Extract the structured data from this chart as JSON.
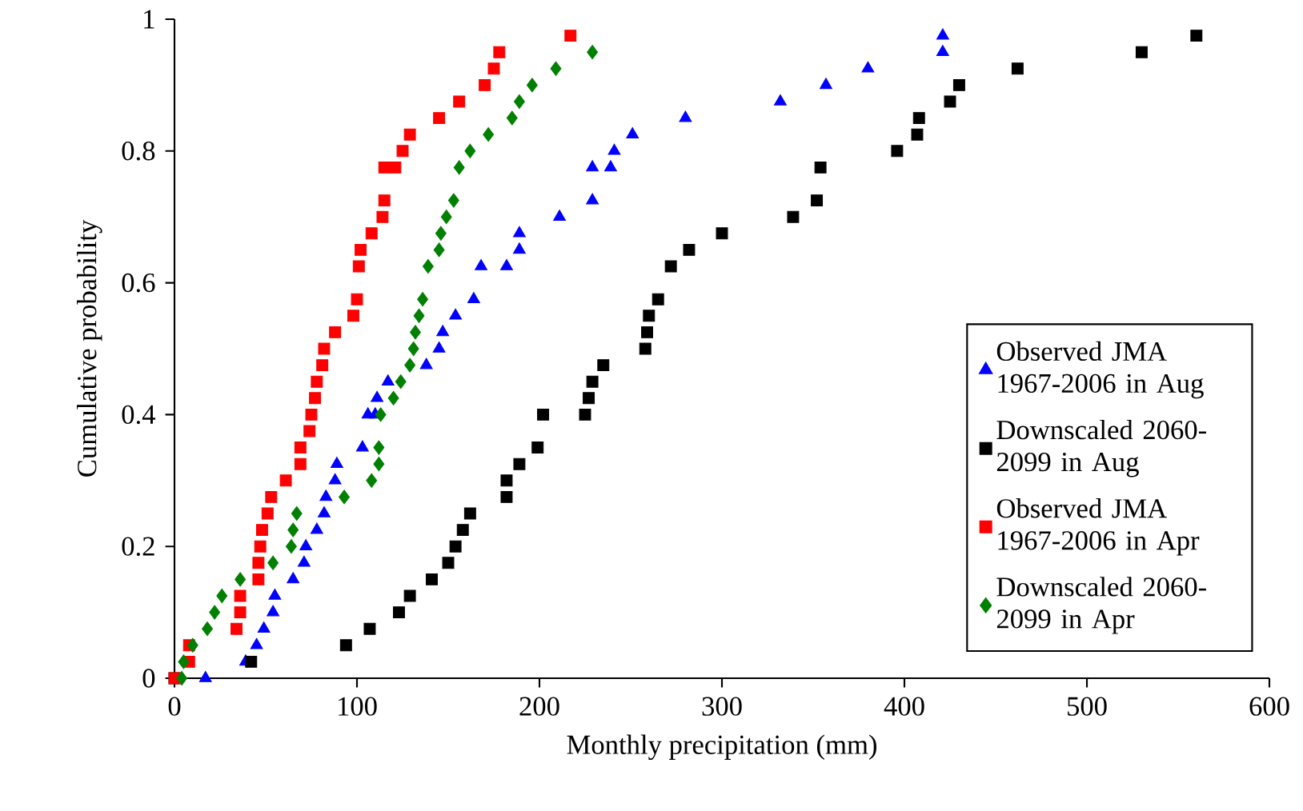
{
  "chart_data": {
    "type": "scatter",
    "xlabel": "Monthly precipitation (mm)",
    "ylabel": "Cumulative probability",
    "xlim": [
      0,
      600
    ],
    "ylim": [
      0,
      1
    ],
    "xticks": [
      0,
      100,
      200,
      300,
      400,
      500,
      600
    ],
    "yticks": [
      0,
      0.2,
      0.4,
      0.6,
      0.8,
      1
    ],
    "legend": "right",
    "series": [
      {
        "name": "Observed JMA 1967-2006 in Aug",
        "color": "#0000ff",
        "marker": "triangle",
        "x": [
          17,
          39,
          45,
          49,
          54,
          55,
          65,
          71,
          72,
          78,
          82,
          83,
          88,
          89,
          103,
          106,
          110,
          111,
          117,
          138,
          145,
          147,
          154,
          164,
          168,
          182,
          189,
          189,
          211,
          229,
          229,
          239,
          241,
          251,
          280,
          332,
          357,
          380,
          421,
          421
        ],
        "values": [
          0,
          0.025,
          0.05,
          0.075,
          0.1,
          0.125,
          0.15,
          0.175,
          0.2,
          0.225,
          0.25,
          0.275,
          0.3,
          0.325,
          0.35,
          0.4,
          0.4,
          0.425,
          0.45,
          0.475,
          0.5,
          0.525,
          0.55,
          0.575,
          0.625,
          0.625,
          0.65,
          0.675,
          0.7,
          0.725,
          0.775,
          0.775,
          0.8,
          0.825,
          0.85,
          0.875,
          0.9,
          0.925,
          0.95,
          0.975
        ]
      },
      {
        "name": "Downscaled 2060-2099 in Aug",
        "color": "#000000",
        "marker": "square",
        "x": [
          0,
          42,
          94,
          107,
          123,
          129,
          141,
          150,
          154,
          158,
          162,
          182,
          182,
          189,
          199,
          202,
          225,
          227,
          229,
          235,
          258,
          259,
          260,
          265,
          272,
          282,
          300,
          339,
          352,
          354,
          396,
          407,
          408,
          425,
          430,
          462,
          530,
          560
        ],
        "values": [
          0,
          0.025,
          0.05,
          0.075,
          0.1,
          0.125,
          0.15,
          0.175,
          0.2,
          0.225,
          0.25,
          0.275,
          0.3,
          0.325,
          0.35,
          0.4,
          0.4,
          0.425,
          0.45,
          0.475,
          0.5,
          0.525,
          0.55,
          0.575,
          0.625,
          0.65,
          0.675,
          0.7,
          0.725,
          0.775,
          0.8,
          0.825,
          0.85,
          0.875,
          0.9,
          0.925,
          0.95,
          0.975
        ]
      },
      {
        "name": "Observed JMA 1967-2006 in Apr",
        "color": "#ff0000",
        "marker": "square",
        "x": [
          0,
          8,
          8,
          34,
          36,
          36,
          46,
          46,
          47,
          48,
          51,
          53,
          61,
          69,
          69,
          74,
          75,
          77,
          78,
          81,
          82,
          88,
          98,
          100,
          101,
          102,
          108,
          114,
          115,
          115,
          121,
          125,
          129,
          145,
          156,
          170,
          175,
          178,
          217
        ],
        "values": [
          0,
          0.025,
          0.05,
          0.075,
          0.1,
          0.125,
          0.15,
          0.175,
          0.2,
          0.225,
          0.25,
          0.275,
          0.3,
          0.325,
          0.35,
          0.375,
          0.4,
          0.425,
          0.45,
          0.475,
          0.5,
          0.525,
          0.55,
          0.575,
          0.625,
          0.65,
          0.675,
          0.7,
          0.725,
          0.775,
          0.775,
          0.8,
          0.825,
          0.85,
          0.875,
          0.9,
          0.925,
          0.95,
          0.975
        ]
      },
      {
        "name": "Downscaled 2060-2099 in Apr",
        "color": "#008000",
        "marker": "diamond",
        "x": [
          4,
          5,
          10,
          18,
          22,
          26,
          36,
          54,
          64,
          65,
          67,
          93,
          108,
          112,
          112,
          113,
          120,
          124,
          129,
          131,
          132,
          134,
          136,
          139,
          145,
          146,
          149,
          153,
          156,
          162,
          172,
          185,
          189,
          196,
          209,
          229
        ],
        "values": [
          0,
          0.025,
          0.05,
          0.075,
          0.1,
          0.125,
          0.15,
          0.175,
          0.2,
          0.225,
          0.25,
          0.275,
          0.3,
          0.325,
          0.35,
          0.4,
          0.425,
          0.45,
          0.475,
          0.5,
          0.525,
          0.55,
          0.575,
          0.625,
          0.65,
          0.675,
          0.7,
          0.725,
          0.775,
          0.8,
          0.825,
          0.85,
          0.875,
          0.9,
          0.925,
          0.95
        ]
      }
    ]
  }
}
